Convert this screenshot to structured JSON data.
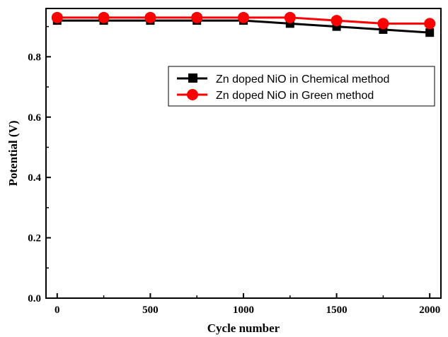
{
  "chart_data": {
    "type": "line",
    "xlabel": "Cycle number",
    "ylabel": "Potential (V)",
    "xlim": [
      -60,
      2060
    ],
    "ylim": [
      0,
      0.96
    ],
    "xticks": [
      0,
      500,
      1000,
      1500,
      2000
    ],
    "yticks": [
      0.0,
      0.2,
      0.4,
      0.6,
      0.8
    ],
    "xtick_labels": [
      "0",
      "500",
      "1000",
      "1500",
      "2000"
    ],
    "ytick_labels": [
      "0.0",
      "0.2",
      "0.4",
      "0.6",
      "0.8"
    ],
    "x": [
      0,
      250,
      500,
      750,
      1000,
      1250,
      1500,
      1750,
      2000
    ],
    "series": [
      {
        "name": "Zn doped NiO in Chemical method",
        "values": [
          0.92,
          0.92,
          0.92,
          0.92,
          0.92,
          0.91,
          0.9,
          0.89,
          0.88
        ],
        "color": "#000000",
        "marker": "square"
      },
      {
        "name": "Zn doped NiO in Green method",
        "values": [
          0.93,
          0.93,
          0.93,
          0.93,
          0.93,
          0.93,
          0.92,
          0.91,
          0.91
        ],
        "color": "#ff0000",
        "marker": "circle"
      }
    ],
    "legend_position": "upper-right",
    "grid": false
  }
}
